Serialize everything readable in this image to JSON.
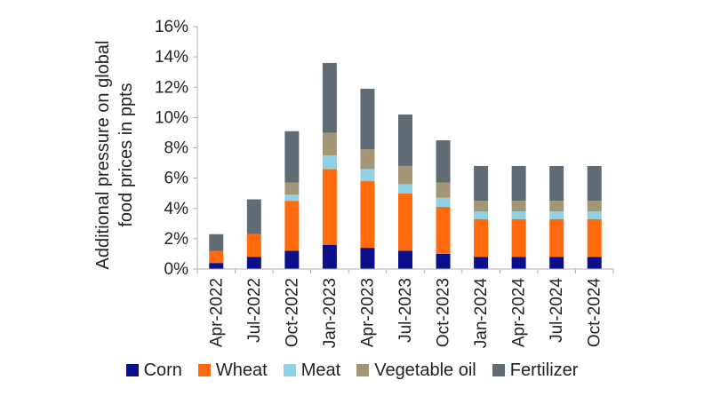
{
  "chart_data": {
    "type": "bar",
    "stacked": true,
    "ylabel_lines": [
      "Additional pressure on global",
      "food prices in ppts"
    ],
    "ylim": [
      0,
      16
    ],
    "yticks": [
      "0%",
      "2%",
      "4%",
      "6%",
      "8%",
      "10%",
      "12%",
      "14%",
      "16%"
    ],
    "categories": [
      "Apr-2022",
      "Jul-2022",
      "Oct-2022",
      "Jan-2023",
      "Apr-2023",
      "Jul-2023",
      "Oct-2023",
      "Jan-2024",
      "Apr-2024",
      "Jul-2024",
      "Oct-2024"
    ],
    "series": [
      {
        "name": "Corn",
        "color": "#0a0f8c",
        "values": [
          0.4,
          0.8,
          1.2,
          1.6,
          1.4,
          1.2,
          1.0,
          0.8,
          0.8,
          0.8,
          0.8
        ]
      },
      {
        "name": "Wheat",
        "color": "#ff6a0e",
        "values": [
          0.8,
          1.5,
          3.3,
          5.0,
          4.4,
          3.8,
          3.1,
          2.5,
          2.5,
          2.5,
          2.5
        ]
      },
      {
        "name": "Meat",
        "color": "#8fd2e6",
        "values": [
          0.0,
          0.0,
          0.4,
          0.9,
          0.8,
          0.6,
          0.6,
          0.5,
          0.5,
          0.5,
          0.5
        ]
      },
      {
        "name": "Vegetable oil",
        "color": "#a39677",
        "values": [
          0.0,
          0.0,
          0.8,
          1.5,
          1.3,
          1.2,
          1.0,
          0.7,
          0.7,
          0.7,
          0.7
        ]
      },
      {
        "name": "Fertilizer",
        "color": "#616b73",
        "values": [
          1.1,
          2.3,
          3.4,
          4.6,
          4.0,
          3.4,
          2.8,
          2.3,
          2.3,
          2.3,
          2.3
        ]
      }
    ],
    "grid": false,
    "legend_position": "bottom"
  }
}
